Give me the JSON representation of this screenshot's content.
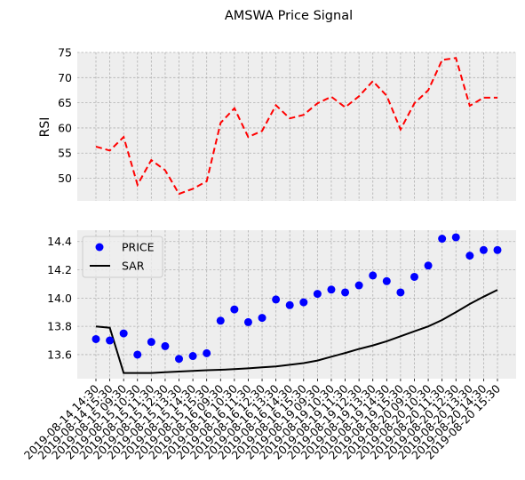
{
  "title": "AMSWA Price Signal",
  "colors": {
    "rsi": "#ff0000",
    "price": "#0000ff",
    "sar": "#000000",
    "panel_bg": "#eeeeee",
    "grid": "#b0b0b0"
  },
  "chart_data": [
    {
      "type": "line",
      "panel": "top",
      "ylabel": "RSI",
      "ylim": [
        45.5,
        75
      ],
      "yticks": [
        50,
        55,
        60,
        65,
        70,
        75
      ],
      "grid": true,
      "series": [
        {
          "name": "RSI",
          "style": "dashed",
          "color": "#ff0000",
          "values": [
            56.3,
            55.5,
            58.2,
            48.7,
            53.6,
            51.6,
            46.9,
            47.9,
            49.4,
            61.0,
            63.9,
            58.2,
            59.4,
            64.5,
            61.9,
            62.6,
            64.9,
            66.2,
            64.1,
            66.3,
            69.3,
            66.4,
            59.7,
            64.9,
            67.5,
            73.5,
            73.9,
            64.4,
            66.0,
            66.0
          ]
        }
      ]
    },
    {
      "type": "scatter",
      "panel": "bottom",
      "ylim": [
        13.43,
        14.48
      ],
      "yticks": [
        "13.6",
        "13.8",
        "14.0",
        "14.2",
        "14.4"
      ],
      "grid": true,
      "legend": "top-left",
      "x": [
        "2019-08-14 14:30",
        "2019-08-14 15:30",
        "2019-08-15 09:30",
        "2019-08-15 10:30",
        "2019-08-15 11:30",
        "2019-08-15 12:30",
        "2019-08-15 13:30",
        "2019-08-15 14:30",
        "2019-08-15 15:30",
        "2019-08-16 09:30",
        "2019-08-16 10:30",
        "2019-08-16 11:30",
        "2019-08-16 12:30",
        "2019-08-16 13:30",
        "2019-08-16 14:30",
        "2019-08-16 15:30",
        "2019-08-19 09:30",
        "2019-08-19 10:30",
        "2019-08-19 11:30",
        "2019-08-19 12:30",
        "2019-08-19 13:30",
        "2019-08-19 14:30",
        "2019-08-19 15:30",
        "2019-08-20 09:30",
        "2019-08-20 10:30",
        "2019-08-20 11:30",
        "2019-08-20 12:30",
        "2019-08-20 13:30",
        "2019-08-20 14:30",
        "2019-08-20 15:30"
      ],
      "series": [
        {
          "name": "PRICE",
          "marker": "o",
          "color": "#0000ff",
          "values": [
            13.71,
            13.7,
            13.75,
            13.6,
            13.69,
            13.66,
            13.57,
            13.59,
            13.61,
            13.84,
            13.92,
            13.83,
            13.86,
            13.99,
            13.95,
            13.97,
            14.03,
            14.06,
            14.04,
            14.09,
            14.16,
            14.12,
            14.04,
            14.15,
            14.23,
            14.42,
            14.43,
            14.3,
            14.34,
            14.34
          ]
        },
        {
          "name": "SAR",
          "style": "solid",
          "color": "#000000",
          "values": [
            13.8,
            13.79,
            13.47,
            13.47,
            13.47,
            13.475,
            13.48,
            13.485,
            13.49,
            13.493,
            13.497,
            13.503,
            13.51,
            13.517,
            13.528,
            13.54,
            13.558,
            13.585,
            13.612,
            13.64,
            13.665,
            13.695,
            13.73,
            13.765,
            13.8,
            13.845,
            13.9,
            13.958,
            14.01,
            14.058
          ]
        }
      ]
    }
  ]
}
